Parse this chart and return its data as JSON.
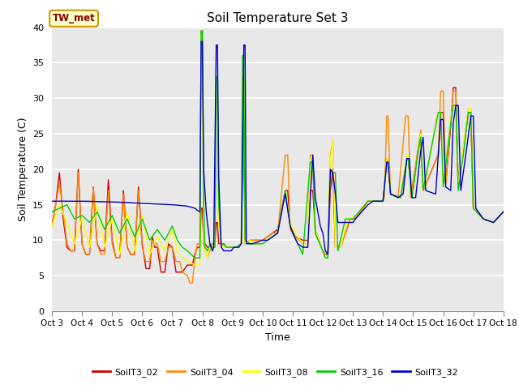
{
  "title": "Soil Temperature Set 3",
  "xlabel": "Time",
  "ylabel": "Soil Temperature (C)",
  "ylim": [
    0,
    40
  ],
  "xlim": [
    0,
    360
  ],
  "x_tick_labels": [
    "Oct 3",
    "Oct 4",
    "Oct 5",
    "Oct 6",
    "Oct 7",
    "Oct 8",
    "Oct 9",
    "Oct 10",
    "Oct 11",
    "Oct 12",
    "Oct 13",
    "Oct 14",
    "Oct 15",
    "Oct 16",
    "Oct 17",
    "Oct 18"
  ],
  "x_tick_positions": [
    0,
    24,
    48,
    72,
    96,
    120,
    144,
    168,
    192,
    216,
    240,
    264,
    288,
    312,
    336,
    360
  ],
  "background_color": "#dcdcdc",
  "plot_bg": "#e8e8e8",
  "grid_color": "#ffffff",
  "annotation_text": "TW_met",
  "annotation_bg": "#ffffcc",
  "annotation_border": "#cc9900",
  "series_colors": {
    "SoilT3_02": "#cc0000",
    "SoilT3_04": "#ff8800",
    "SoilT3_08": "#ffff00",
    "SoilT3_16": "#00cc00",
    "SoilT3_32": "#0000cc"
  },
  "legend_labels": [
    "SoilT3_02",
    "SoilT3_04",
    "SoilT3_08",
    "SoilT3_16",
    "SoilT3_32"
  ]
}
